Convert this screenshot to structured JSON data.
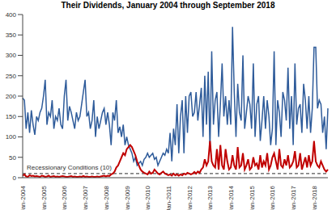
{
  "chart_data": {
    "type": "line",
    "title": "Their Dividends, January 2004 through September 2018",
    "categories": [
      "Jan-2004",
      null,
      null,
      null,
      null,
      null,
      null,
      null,
      null,
      null,
      null,
      null,
      "Jan-2005",
      null,
      null,
      null,
      null,
      null,
      null,
      null,
      null,
      null,
      null,
      null,
      "Jan-2006",
      null,
      null,
      null,
      null,
      null,
      null,
      null,
      null,
      null,
      null,
      null,
      "Jan-2007",
      null,
      null,
      null,
      null,
      null,
      null,
      null,
      null,
      null,
      null,
      null,
      "Jan-2008",
      null,
      null,
      null,
      null,
      null,
      null,
      null,
      null,
      null,
      null,
      null,
      "Jan-2009",
      null,
      null,
      null,
      null,
      null,
      null,
      null,
      null,
      null,
      null,
      null,
      "Jan-2010",
      null,
      null,
      null,
      null,
      null,
      null,
      null,
      null,
      null,
      null,
      null,
      "Jan-2011",
      null,
      null,
      null,
      null,
      null,
      null,
      null,
      null,
      null,
      null,
      null,
      "Jan-2012",
      null,
      null,
      null,
      null,
      null,
      null,
      null,
      null,
      null,
      null,
      null,
      "Jan-2013",
      null,
      null,
      null,
      null,
      null,
      null,
      null,
      null,
      null,
      null,
      null,
      "Jan-2014",
      null,
      null,
      null,
      null,
      null,
      null,
      null,
      null,
      null,
      null,
      null,
      "Jan-2015",
      null,
      null,
      null,
      null,
      null,
      null,
      null,
      null,
      null,
      null,
      null,
      "Jan-2016",
      null,
      null,
      null,
      null,
      null,
      null,
      null,
      null,
      null,
      null,
      null,
      "Jan-2017",
      null,
      null,
      null,
      null,
      null,
      null,
      null,
      null,
      null,
      null,
      null,
      "Jan-2018",
      null,
      null,
      null,
      null,
      null,
      null,
      null,
      null
    ],
    "series": [
      {
        "color": "#2e5b9a",
        "values": [
          195,
          190,
          120,
          160,
          110,
          165,
          130,
          105,
          150,
          140,
          160,
          170,
          200,
          240,
          130,
          160,
          150,
          190,
          120,
          150,
          140,
          170,
          130,
          120,
          200,
          240,
          140,
          175,
          160,
          140,
          120,
          160,
          140,
          150,
          180,
          210,
          240,
          150,
          160,
          120,
          140,
          190,
          100,
          150,
          120,
          140,
          160,
          170,
          130,
          160,
          130,
          80,
          160,
          140,
          190,
          110,
          125,
          100,
          130,
          80,
          100,
          80,
          70,
          60,
          40,
          50,
          30,
          35,
          40,
          30,
          45,
          50,
          60,
          50,
          55,
          60,
          45,
          50,
          30,
          40,
          50,
          60,
          55,
          70,
          60,
          110,
          40,
          120,
          80,
          180,
          60,
          150,
          190,
          60,
          200,
          110,
          200,
          210,
          150,
          160,
          210,
          140,
          180,
          220,
          100,
          250,
          130,
          260,
          70,
          310,
          130,
          190,
          210,
          100,
          180,
          280,
          150,
          200,
          130,
          190,
          130,
          370,
          210,
          100,
          230,
          160,
          140,
          300,
          120,
          160,
          200,
          180,
          120,
          280,
          100,
          180,
          200,
          90,
          140,
          200,
          120,
          190,
          150,
          80,
          120,
          310,
          80,
          190,
          160,
          100,
          210,
          190,
          140,
          270,
          120,
          200,
          80,
          280,
          130,
          170,
          180,
          110,
          230,
          190,
          120,
          200,
          110,
          170,
          320,
          320,
          170,
          190,
          180,
          110,
          150,
          70,
          170
        ]
      },
      {
        "color": "#c00000",
        "values": [
          5,
          8,
          3,
          2,
          6,
          4,
          5,
          3,
          4,
          3,
          2,
          5,
          4,
          2,
          3,
          5,
          2,
          3,
          4,
          2,
          3,
          2,
          3,
          4,
          3,
          2,
          2,
          3,
          4,
          2,
          3,
          2,
          2,
          3,
          2,
          4,
          2,
          3,
          2,
          2,
          3,
          2,
          2,
          3,
          2,
          3,
          4,
          5,
          3,
          5,
          4,
          8,
          10,
          15,
          25,
          30,
          40,
          50,
          60,
          55,
          70,
          75,
          80,
          75,
          65,
          55,
          40,
          30,
          20,
          15,
          12,
          10,
          8,
          15,
          10,
          12,
          20,
          15,
          10,
          8,
          12,
          15,
          10,
          8,
          6,
          8,
          5,
          10,
          6,
          8,
          5,
          8,
          6,
          10,
          8,
          12,
          10,
          8,
          10,
          14,
          10,
          15,
          12,
          20,
          25,
          45,
          30,
          40,
          90,
          40,
          30,
          25,
          70,
          20,
          80,
          30,
          20,
          70,
          40,
          20,
          25,
          55,
          30,
          20,
          75,
          25,
          30,
          60,
          20,
          30,
          45,
          20,
          25,
          50,
          30,
          35,
          20,
          55,
          25,
          40,
          30,
          60,
          20,
          30,
          50,
          60,
          40,
          20,
          70,
          30,
          25,
          45,
          30,
          55,
          25,
          30,
          40,
          65,
          25,
          30,
          60,
          20,
          35,
          50,
          25,
          55,
          30,
          40,
          90,
          40,
          30,
          25,
          40,
          30,
          20,
          15,
          20
        ]
      }
    ],
    "reference_line": {
      "value": 10,
      "label": "Recessionary Conditions (10)"
    },
    "ylim": [
      0,
      400
    ],
    "yticks": [
      0,
      50,
      100,
      150,
      200,
      250,
      300,
      350,
      400
    ],
    "grid": false
  }
}
